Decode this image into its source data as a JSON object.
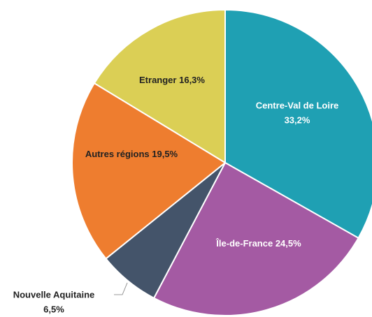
{
  "chart_data": {
    "type": "pie",
    "categories": [
      "Centre-Val de Loire",
      "Île-de-France",
      "Nouvelle Aquitaine",
      "Autres régions",
      "Etranger"
    ],
    "values": [
      33.2,
      24.5,
      6.5,
      19.5,
      16.3
    ],
    "value_labels": [
      "33,2%",
      "24,5%",
      "6,5%",
      "19,5%",
      "16,3%"
    ],
    "colors": [
      "#1fa0b3",
      "#a45aa3",
      "#44546a",
      "#ee7d2f",
      "#dbcf55"
    ]
  }
}
